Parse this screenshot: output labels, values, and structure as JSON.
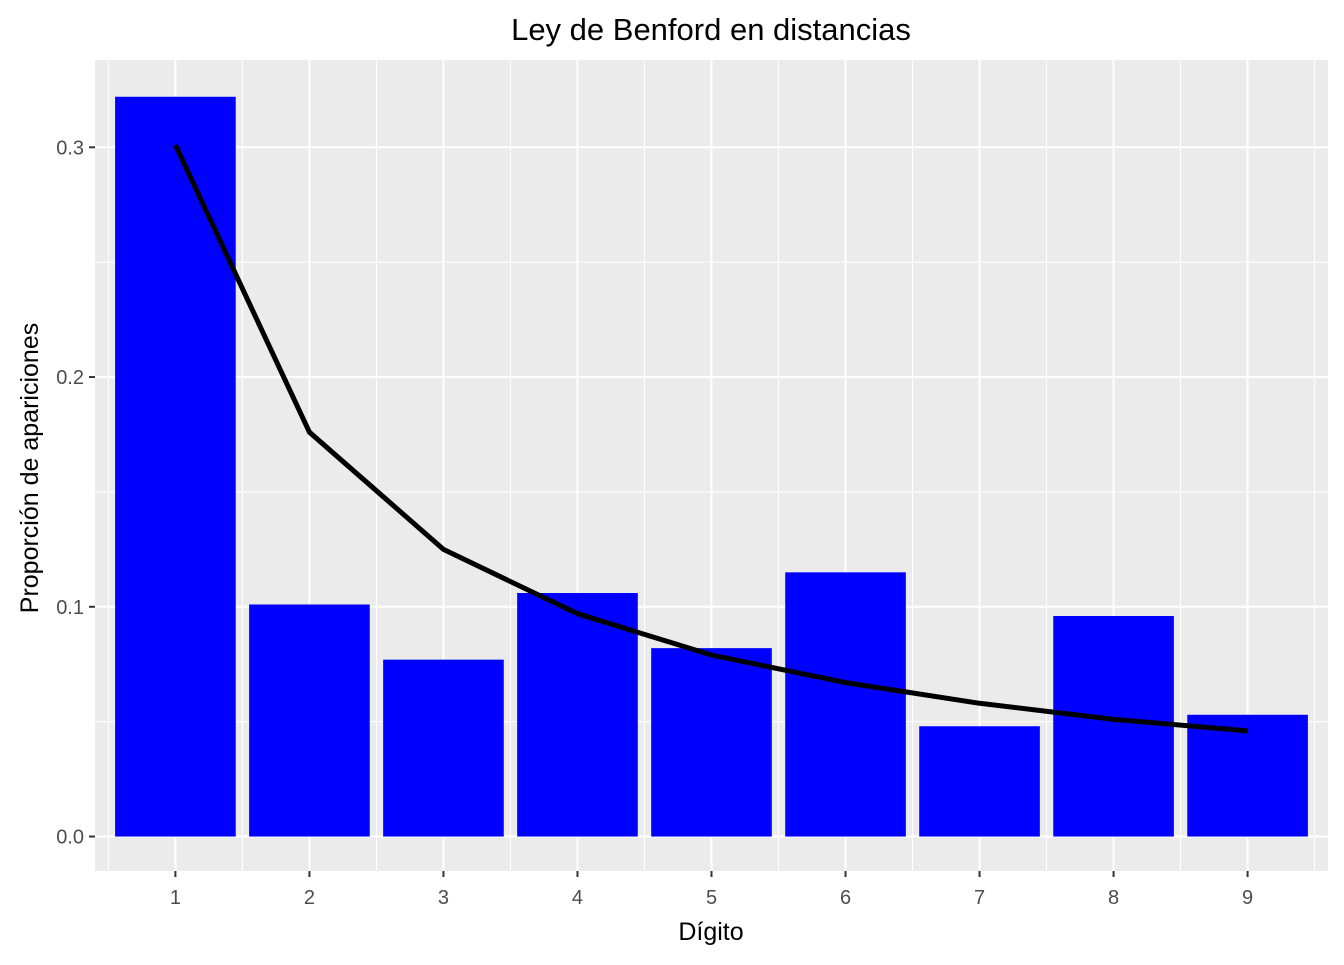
{
  "chart_data": {
    "type": "bar",
    "title": "Ley de Benford en distancias",
    "xlabel": "Dígito",
    "ylabel": "Proporción de apariciones",
    "categories": [
      "1",
      "2",
      "3",
      "4",
      "5",
      "6",
      "7",
      "8",
      "9"
    ],
    "series": [
      {
        "type": "bar",
        "values": [
          0.322,
          0.101,
          0.077,
          0.106,
          0.082,
          0.115,
          0.048,
          0.096,
          0.053
        ]
      },
      {
        "type": "line",
        "values": [
          0.301,
          0.176,
          0.125,
          0.097,
          0.079,
          0.067,
          0.058,
          0.051,
          0.046
        ]
      }
    ],
    "y_ticks": [
      "0.0",
      "0.1",
      "0.2",
      "0.3"
    ],
    "ylim": [
      -0.015,
      0.338
    ],
    "grid": true,
    "legend": "none",
    "colors": {
      "bar": "#0000ff",
      "line": "#000000",
      "panel_background": "#ebebeb",
      "grid": "#ffffff"
    }
  }
}
